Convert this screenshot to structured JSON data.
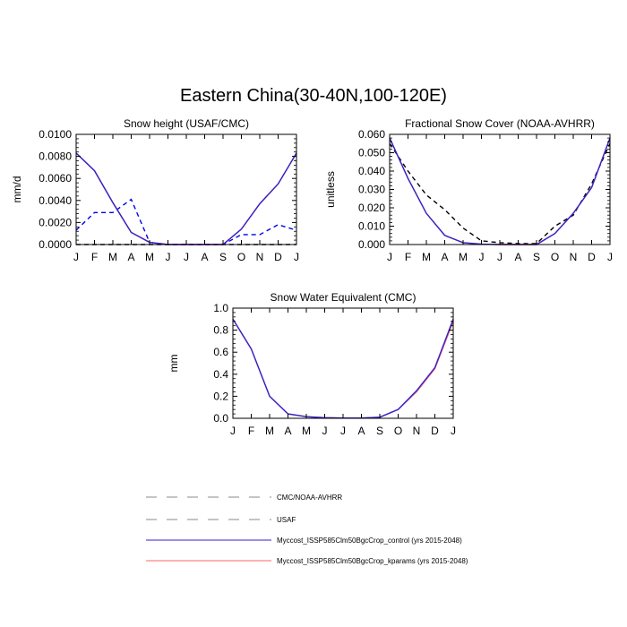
{
  "figure": {
    "suptitle": "Eastern China(30-40N,100-120E)"
  },
  "months": [
    "J",
    "F",
    "M",
    "A",
    "M",
    "J",
    "J",
    "A",
    "S",
    "O",
    "N",
    "D",
    "J"
  ],
  "colors": {
    "control": "#3322cc",
    "kparams": "#ff6666",
    "obs_black": "#000000",
    "obs_blue": "#0000ee",
    "legend_gray": "#888888"
  },
  "chart_data": [
    {
      "type": "line",
      "title": "Snow height (USAF/CMC)",
      "ylabel": "mm/d",
      "xlabel": "",
      "ylim": [
        0,
        0.01
      ],
      "yticks": [
        "0.0000",
        "0.0020",
        "0.0040",
        "0.0060",
        "0.0080",
        "0.0100"
      ],
      "yticks_values": [
        0,
        0.002,
        0.004,
        0.006,
        0.008,
        0.01
      ],
      "series": [
        {
          "name": "CMC/NOAA-AVHRR",
          "style": "dashed",
          "color": "#000000",
          "values": [
            0,
            0,
            0,
            0,
            0,
            0,
            0,
            0,
            0,
            0,
            0,
            0,
            0
          ]
        },
        {
          "name": "USAF",
          "style": "dashed",
          "color": "#0000ee",
          "values": [
            0.0013,
            0.0029,
            0.0029,
            0.0041,
            0.0002,
            0,
            0,
            0,
            0,
            0.0009,
            0.0009,
            0.0018,
            0.0013
          ]
        },
        {
          "name": "Myccost_ISSP585Clm50BgcCrop_kparams (yrs 2015-2048)",
          "style": "solid",
          "color": "#ff6666",
          "values": [
            0.0083,
            0.0067,
            0.0038,
            0.0011,
            0.0002,
            0,
            0,
            0,
            0,
            0.0014,
            0.0037,
            0.0055,
            0.0083
          ]
        },
        {
          "name": "Myccost_ISSP585Clm50BgcCrop_control (yrs 2015-2048)",
          "style": "solid",
          "color": "#3322cc",
          "values": [
            0.0083,
            0.0067,
            0.0038,
            0.0011,
            0.0002,
            0,
            0,
            0,
            0,
            0.0014,
            0.0037,
            0.0055,
            0.0083
          ]
        }
      ]
    },
    {
      "type": "line",
      "title": "Fractional Snow Cover (NOAA-AVHRR)",
      "ylabel": "unitless",
      "xlabel": "",
      "ylim": [
        0,
        0.06
      ],
      "yticks": [
        "0.000",
        "0.010",
        "0.020",
        "0.030",
        "0.040",
        "0.050",
        "0.060"
      ],
      "yticks_values": [
        0,
        0.01,
        0.02,
        0.03,
        0.04,
        0.05,
        0.06
      ],
      "series": [
        {
          "name": "CMC/NOAA-AVHRR",
          "style": "dashed",
          "color": "#000000",
          "values": [
            0.055,
            0.04,
            0.027,
            0.019,
            0.009,
            0.002,
            0.001,
            0.0005,
            0.0005,
            0.01,
            0.016,
            0.033,
            0.055
          ]
        },
        {
          "name": "Myccost_ISSP585Clm50BgcCrop_kparams (yrs 2015-2048)",
          "style": "solid",
          "color": "#ff6666",
          "values": [
            0.058,
            0.036,
            0.017,
            0.005,
            0.001,
            0.0002,
            0,
            0,
            0,
            0.006,
            0.017,
            0.031,
            0.058
          ]
        },
        {
          "name": "Myccost_ISSP585Clm50BgcCrop_control (yrs 2015-2048)",
          "style": "solid",
          "color": "#3322cc",
          "values": [
            0.058,
            0.036,
            0.017,
            0.005,
            0.001,
            0.0002,
            0,
            0,
            0,
            0.006,
            0.017,
            0.031,
            0.058
          ]
        }
      ]
    },
    {
      "type": "line",
      "title": "Snow Water Equivalent (CMC)",
      "ylabel": "mm",
      "xlabel": "",
      "ylim": [
        0,
        1.0
      ],
      "yticks": [
        "0.0",
        "0.2",
        "0.4",
        "0.6",
        "0.8",
        "1.0"
      ],
      "yticks_values": [
        0,
        0.2,
        0.4,
        0.6,
        0.8,
        1.0
      ],
      "series": [
        {
          "name": "Myccost_ISSP585Clm50BgcCrop_kparams (yrs 2015-2048)",
          "style": "solid",
          "color": "#ff6666",
          "values": [
            0.9,
            0.63,
            0.2,
            0.04,
            0.015,
            0.005,
            0.002,
            0.002,
            0.01,
            0.08,
            0.24,
            0.45,
            0.88
          ]
        },
        {
          "name": "Myccost_ISSP585Clm50BgcCrop_control (yrs 2015-2048)",
          "style": "solid",
          "color": "#3322cc",
          "values": [
            0.9,
            0.63,
            0.2,
            0.04,
            0.015,
            0.005,
            0.002,
            0.002,
            0.01,
            0.08,
            0.25,
            0.46,
            0.9
          ]
        }
      ]
    }
  ],
  "legend": [
    {
      "label": "CMC/NOAA-AVHRR",
      "style": "dashed",
      "color": "#888888"
    },
    {
      "label": "USAF",
      "style": "dashed",
      "color": "#888888"
    },
    {
      "label": "Myccost_ISSP585Clm50BgcCrop_control (yrs 2015-2048)",
      "style": "solid",
      "color": "#3322cc"
    },
    {
      "label": "Myccost_ISSP585Clm50BgcCrop_kparams (yrs 2015-2048)",
      "style": "solid",
      "color": "#ff6666"
    }
  ]
}
